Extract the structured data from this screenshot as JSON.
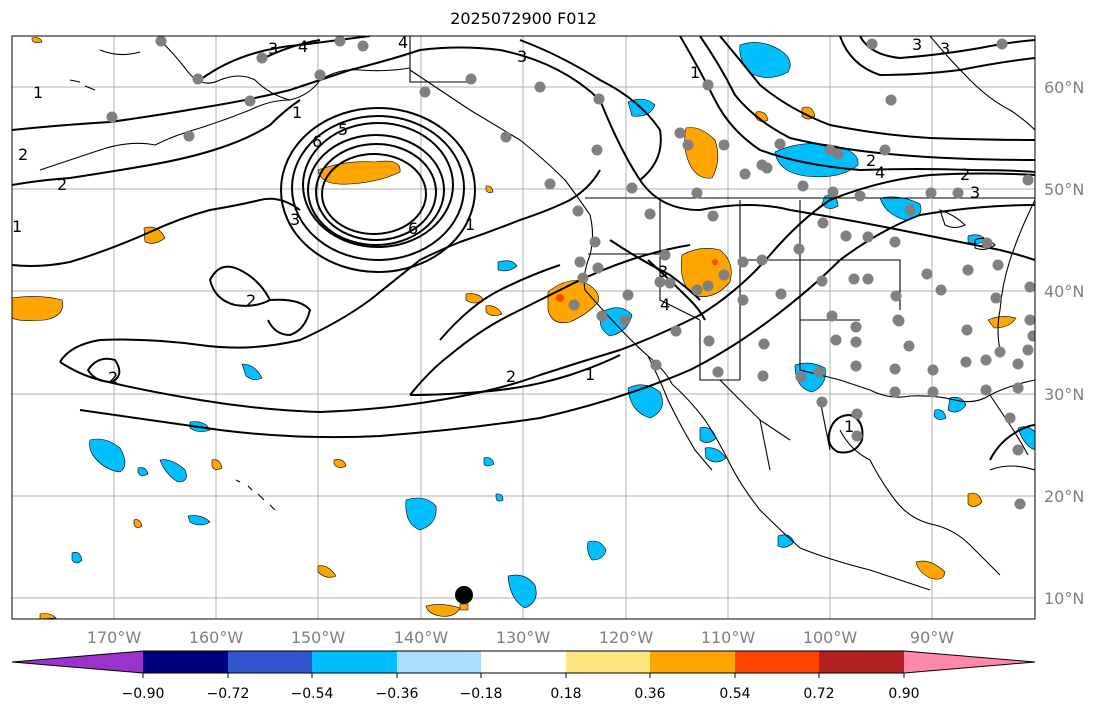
{
  "title": "2025072900 F012",
  "lat_labels": [
    "60°N",
    "50°N",
    "40°N",
    "30°N",
    "20°N",
    "10°N"
  ],
  "lon_labels": [
    "170°W",
    "160°W",
    "150°W",
    "140°W",
    "130°W",
    "120°W",
    "110°W",
    "100°W",
    "90°W"
  ],
  "colorbar": {
    "tick_labels": [
      "−0.90",
      "−0.72",
      "−0.54",
      "−0.36",
      "−0.18",
      "0.18",
      "0.36",
      "0.54",
      "0.72",
      "0.90"
    ],
    "colors": [
      "#9933cc",
      "#000080",
      "#3355cc",
      "#00bfff",
      "#aaddff",
      "#ffffff",
      "#ffe680",
      "#ffa500",
      "#ff4500",
      "#b22222",
      "#ff88aa"
    ]
  },
  "contour_labels": [
    "1",
    "2",
    "3",
    "4",
    "6",
    "2",
    "3",
    "4",
    "1",
    "2",
    "6",
    "5",
    "4",
    "3",
    "1",
    "3",
    "3",
    "2",
    "2",
    "1",
    "1",
    "2",
    "4",
    "3",
    "3",
    "1",
    "1",
    "2"
  ],
  "colors": {
    "ocean": "#ffffff",
    "land_line": "#000000",
    "grid": "#b0b0b0",
    "stations": "#808080",
    "orange_fill": "#ffa500",
    "blue_fill": "#00bfff"
  }
}
